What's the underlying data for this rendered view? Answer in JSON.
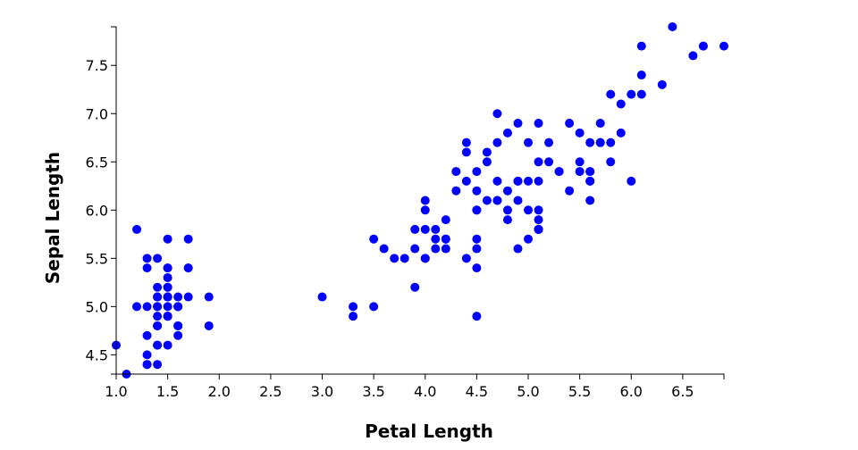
{
  "chart_data": {
    "type": "scatter",
    "title": "",
    "xlabel": "Petal Length",
    "ylabel": "Sepal Length",
    "xlim": [
      1.0,
      6.9
    ],
    "ylim": [
      4.3,
      7.9
    ],
    "xticks": [
      "1.0",
      "1.5",
      "2.0",
      "2.5",
      "3.0",
      "3.5",
      "4.0",
      "4.5",
      "5.0",
      "5.5",
      "6.0",
      "6.5"
    ],
    "yticks": [
      "4.5",
      "5.0",
      "5.5",
      "6.0",
      "6.5",
      "7.0",
      "7.5"
    ],
    "grid": false,
    "point_color": "#0000ff",
    "points": [
      [
        1.4,
        5.1
      ],
      [
        1.4,
        4.9
      ],
      [
        1.3,
        4.7
      ],
      [
        1.5,
        4.6
      ],
      [
        1.4,
        5.0
      ],
      [
        1.7,
        5.4
      ],
      [
        1.4,
        4.6
      ],
      [
        1.5,
        5.0
      ],
      [
        1.4,
        4.4
      ],
      [
        1.5,
        4.9
      ],
      [
        1.5,
        5.4
      ],
      [
        1.6,
        4.8
      ],
      [
        1.4,
        4.8
      ],
      [
        1.1,
        4.3
      ],
      [
        1.2,
        5.8
      ],
      [
        1.5,
        5.7
      ],
      [
        1.3,
        5.4
      ],
      [
        1.4,
        5.1
      ],
      [
        1.7,
        5.7
      ],
      [
        1.5,
        5.1
      ],
      [
        1.7,
        5.4
      ],
      [
        1.5,
        5.1
      ],
      [
        1.0,
        4.6
      ],
      [
        1.7,
        5.1
      ],
      [
        1.9,
        4.8
      ],
      [
        1.6,
        5.0
      ],
      [
        1.6,
        5.0
      ],
      [
        1.5,
        5.2
      ],
      [
        1.4,
        5.2
      ],
      [
        1.6,
        4.7
      ],
      [
        1.6,
        4.8
      ],
      [
        1.5,
        5.4
      ],
      [
        1.5,
        5.2
      ],
      [
        1.4,
        5.5
      ],
      [
        1.5,
        4.9
      ],
      [
        1.2,
        5.0
      ],
      [
        1.3,
        5.5
      ],
      [
        1.5,
        4.9
      ],
      [
        1.3,
        4.4
      ],
      [
        1.5,
        5.1
      ],
      [
        1.3,
        5.0
      ],
      [
        1.3,
        4.5
      ],
      [
        1.3,
        4.4
      ],
      [
        1.6,
        5.0
      ],
      [
        1.9,
        5.1
      ],
      [
        1.4,
        4.8
      ],
      [
        1.6,
        5.1
      ],
      [
        1.4,
        4.6
      ],
      [
        1.5,
        5.3
      ],
      [
        1.4,
        5.0
      ],
      [
        4.7,
        7.0
      ],
      [
        4.5,
        6.4
      ],
      [
        4.9,
        6.9
      ],
      [
        4.0,
        5.5
      ],
      [
        4.6,
        6.5
      ],
      [
        4.5,
        5.7
      ],
      [
        4.7,
        6.3
      ],
      [
        3.3,
        4.9
      ],
      [
        4.6,
        6.6
      ],
      [
        3.9,
        5.2
      ],
      [
        3.5,
        5.0
      ],
      [
        4.2,
        5.9
      ],
      [
        4.0,
        6.0
      ],
      [
        4.7,
        6.1
      ],
      [
        3.6,
        5.6
      ],
      [
        4.4,
        6.7
      ],
      [
        4.5,
        5.6
      ],
      [
        4.1,
        5.8
      ],
      [
        4.5,
        6.2
      ],
      [
        3.9,
        5.6
      ],
      [
        4.8,
        5.9
      ],
      [
        4.0,
        6.1
      ],
      [
        4.9,
        6.3
      ],
      [
        4.7,
        6.1
      ],
      [
        4.3,
        6.4
      ],
      [
        4.4,
        6.6
      ],
      [
        4.8,
        6.8
      ],
      [
        5.0,
        6.7
      ],
      [
        4.5,
        6.0
      ],
      [
        3.5,
        5.7
      ],
      [
        3.8,
        5.5
      ],
      [
        3.7,
        5.5
      ],
      [
        3.9,
        5.8
      ],
      [
        5.1,
        6.0
      ],
      [
        4.5,
        5.4
      ],
      [
        4.5,
        6.0
      ],
      [
        4.7,
        6.7
      ],
      [
        4.4,
        6.3
      ],
      [
        4.1,
        5.6
      ],
      [
        4.0,
        5.5
      ],
      [
        4.4,
        5.5
      ],
      [
        4.6,
        6.1
      ],
      [
        4.0,
        5.8
      ],
      [
        3.3,
        5.0
      ],
      [
        4.2,
        5.6
      ],
      [
        4.2,
        5.7
      ],
      [
        4.2,
        5.7
      ],
      [
        4.3,
        6.2
      ],
      [
        3.0,
        5.1
      ],
      [
        4.1,
        5.7
      ],
      [
        6.0,
        6.3
      ],
      [
        5.1,
        5.8
      ],
      [
        5.9,
        7.1
      ],
      [
        5.6,
        6.3
      ],
      [
        5.8,
        6.5
      ],
      [
        6.6,
        7.6
      ],
      [
        4.5,
        4.9
      ],
      [
        6.3,
        7.3
      ],
      [
        5.8,
        6.7
      ],
      [
        6.1,
        7.2
      ],
      [
        5.1,
        6.5
      ],
      [
        5.3,
        6.4
      ],
      [
        5.5,
        6.8
      ],
      [
        5.0,
        5.7
      ],
      [
        5.1,
        5.8
      ],
      [
        5.3,
        6.4
      ],
      [
        5.5,
        6.5
      ],
      [
        6.7,
        7.7
      ],
      [
        6.9,
        7.7
      ],
      [
        5.0,
        6.0
      ],
      [
        5.7,
        6.9
      ],
      [
        4.9,
        5.6
      ],
      [
        6.7,
        7.7
      ],
      [
        4.9,
        6.3
      ],
      [
        5.7,
        6.7
      ],
      [
        6.0,
        7.2
      ],
      [
        4.8,
        6.2
      ],
      [
        4.9,
        6.1
      ],
      [
        5.6,
        6.4
      ],
      [
        5.8,
        7.2
      ],
      [
        6.1,
        7.4
      ],
      [
        6.4,
        7.9
      ],
      [
        5.6,
        6.4
      ],
      [
        5.1,
        6.3
      ],
      [
        5.6,
        6.1
      ],
      [
        6.1,
        7.7
      ],
      [
        5.6,
        6.3
      ],
      [
        5.5,
        6.4
      ],
      [
        4.8,
        6.0
      ],
      [
        5.4,
        6.9
      ],
      [
        5.6,
        6.7
      ],
      [
        5.1,
        6.9
      ],
      [
        5.1,
        5.8
      ],
      [
        5.9,
        6.8
      ],
      [
        5.7,
        6.7
      ],
      [
        5.2,
        6.7
      ],
      [
        5.0,
        6.3
      ],
      [
        5.2,
        6.5
      ],
      [
        5.4,
        6.2
      ],
      [
        5.1,
        5.9
      ]
    ]
  }
}
